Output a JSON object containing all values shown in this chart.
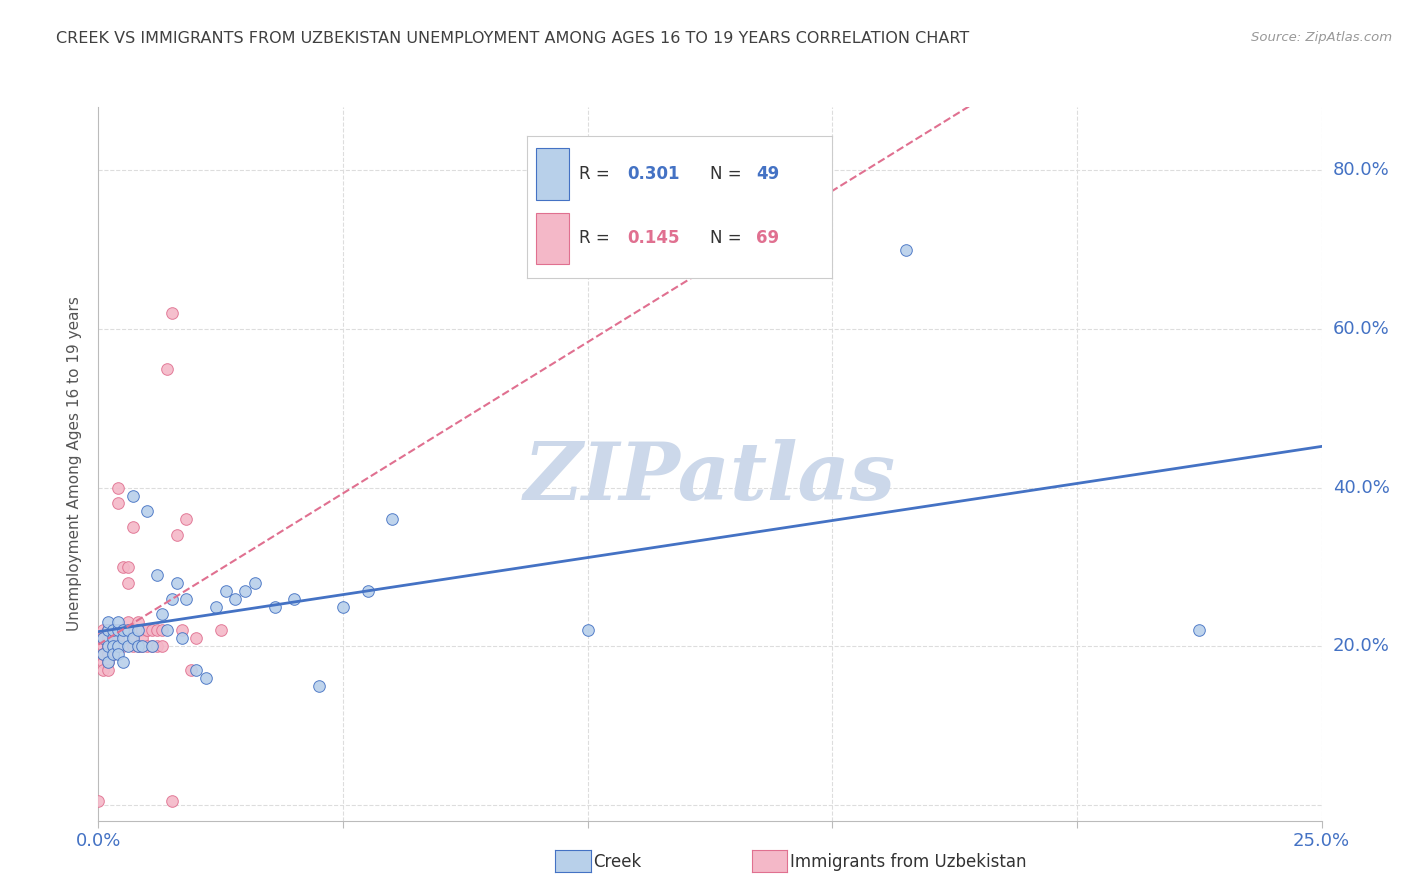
{
  "title": "CREEK VS IMMIGRANTS FROM UZBEKISTAN UNEMPLOYMENT AMONG AGES 16 TO 19 YEARS CORRELATION CHART",
  "source": "Source: ZipAtlas.com",
  "ylabel": "Unemployment Among Ages 16 to 19 years",
  "xlim": [
    0,
    0.25
  ],
  "ylim": [
    -0.02,
    0.88
  ],
  "creek_R": 0.301,
  "creek_N": 49,
  "uzbek_R": 0.145,
  "uzbek_N": 69,
  "creek_color": "#b8d0ea",
  "creek_edge_color": "#4472c4",
  "creek_line_color": "#4472c4",
  "uzbek_color": "#f4b8c8",
  "uzbek_edge_color": "#e07090",
  "uzbek_line_color": "#e07090",
  "creek_scatter_x": [
    0.001,
    0.001,
    0.002,
    0.002,
    0.002,
    0.002,
    0.003,
    0.003,
    0.003,
    0.003,
    0.004,
    0.004,
    0.004,
    0.004,
    0.005,
    0.005,
    0.005,
    0.006,
    0.006,
    0.007,
    0.007,
    0.008,
    0.008,
    0.009,
    0.01,
    0.011,
    0.012,
    0.013,
    0.014,
    0.015,
    0.016,
    0.017,
    0.018,
    0.02,
    0.022,
    0.024,
    0.026,
    0.028,
    0.03,
    0.032,
    0.036,
    0.04,
    0.045,
    0.05,
    0.055,
    0.06,
    0.1,
    0.165,
    0.225
  ],
  "creek_scatter_y": [
    0.21,
    0.19,
    0.22,
    0.2,
    0.18,
    0.23,
    0.21,
    0.2,
    0.22,
    0.19,
    0.22,
    0.2,
    0.19,
    0.23,
    0.21,
    0.18,
    0.22,
    0.2,
    0.22,
    0.39,
    0.21,
    0.22,
    0.2,
    0.2,
    0.37,
    0.2,
    0.29,
    0.24,
    0.22,
    0.26,
    0.28,
    0.21,
    0.26,
    0.17,
    0.16,
    0.25,
    0.27,
    0.26,
    0.27,
    0.28,
    0.25,
    0.26,
    0.15,
    0.25,
    0.27,
    0.36,
    0.22,
    0.7,
    0.22
  ],
  "uzbek_scatter_x": [
    0.0,
    0.001,
    0.001,
    0.001,
    0.001,
    0.001,
    0.001,
    0.002,
    0.002,
    0.002,
    0.002,
    0.002,
    0.002,
    0.002,
    0.002,
    0.002,
    0.003,
    0.003,
    0.003,
    0.003,
    0.003,
    0.003,
    0.003,
    0.003,
    0.003,
    0.004,
    0.004,
    0.004,
    0.004,
    0.004,
    0.004,
    0.005,
    0.005,
    0.005,
    0.006,
    0.006,
    0.006,
    0.006,
    0.007,
    0.007,
    0.007,
    0.007,
    0.007,
    0.008,
    0.008,
    0.008,
    0.008,
    0.009,
    0.009,
    0.009,
    0.009,
    0.01,
    0.01,
    0.01,
    0.011,
    0.011,
    0.012,
    0.012,
    0.013,
    0.013,
    0.014,
    0.015,
    0.015,
    0.016,
    0.017,
    0.018,
    0.019,
    0.02,
    0.025
  ],
  "uzbek_scatter_y": [
    0.005,
    0.22,
    0.2,
    0.18,
    0.21,
    0.19,
    0.17,
    0.22,
    0.21,
    0.2,
    0.22,
    0.19,
    0.22,
    0.2,
    0.18,
    0.17,
    0.22,
    0.21,
    0.22,
    0.2,
    0.21,
    0.22,
    0.19,
    0.2,
    0.22,
    0.4,
    0.38,
    0.21,
    0.22,
    0.2,
    0.22,
    0.3,
    0.22,
    0.2,
    0.28,
    0.22,
    0.3,
    0.23,
    0.35,
    0.22,
    0.2,
    0.22,
    0.21,
    0.22,
    0.2,
    0.22,
    0.23,
    0.22,
    0.2,
    0.22,
    0.21,
    0.22,
    0.2,
    0.22,
    0.22,
    0.2,
    0.22,
    0.2,
    0.22,
    0.2,
    0.55,
    0.62,
    0.005,
    0.34,
    0.22,
    0.36,
    0.17,
    0.21,
    0.22
  ],
  "background_color": "#ffffff",
  "grid_color": "#dddddd",
  "title_color": "#404040",
  "axis_label_color": "#4472c4",
  "ylabel_color": "#555555",
  "watermark_text": "ZIPatlas",
  "watermark_color": "#ccd8ea"
}
